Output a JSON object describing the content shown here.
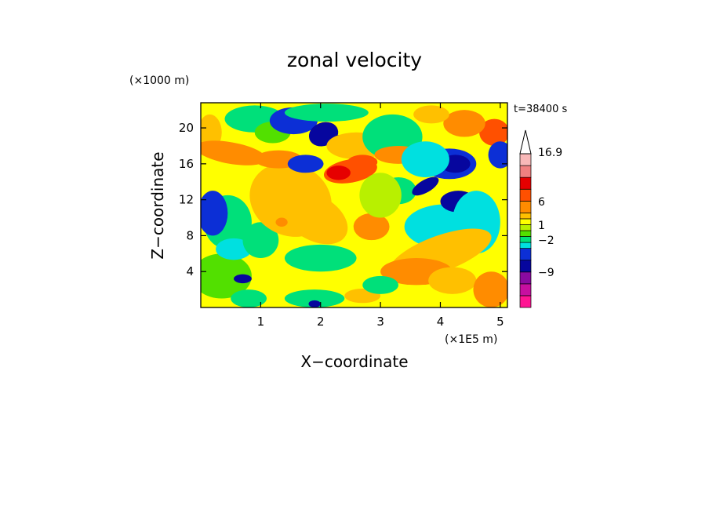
{
  "chart_data": {
    "type": "heatmap",
    "title": "zonal velocity",
    "xlabel": "X−coordinate",
    "ylabel": "Z−coordinate",
    "x_unit": "(×1E5 m)",
    "y_unit": "(×1000 m)",
    "time_label": "t=38400 s",
    "xlim": [
      0,
      5.12
    ],
    "ylim": [
      0,
      22.8
    ],
    "x_ticks": [
      "1",
      "2",
      "3",
      "4",
      "5"
    ],
    "y_ticks": [
      "4",
      "8",
      "12",
      "16",
      "20"
    ],
    "x_tick_values": [
      1,
      2,
      3,
      4,
      5
    ],
    "y_tick_values": [
      4,
      8,
      12,
      16,
      20
    ],
    "colorbar": {
      "labels": [
        "16.9",
        "6",
        "1",
        "−2",
        "−9"
      ],
      "colors": [
        "#ff1493",
        "#c70fa0",
        "#8a0aa0",
        "#06069e",
        "#0c2fd6",
        "#00e0e0",
        "#00e07a",
        "#52e000",
        "#b8f000",
        "#ffff00",
        "#ffc000",
        "#ff8c00",
        "#ff5000",
        "#e60000",
        "#f08080",
        "#f8b8b8"
      ],
      "extend": "max"
    },
    "field_note": "zonal velocity contour field; banded positive (orange/yellow) and negative (blue) velocities"
  }
}
